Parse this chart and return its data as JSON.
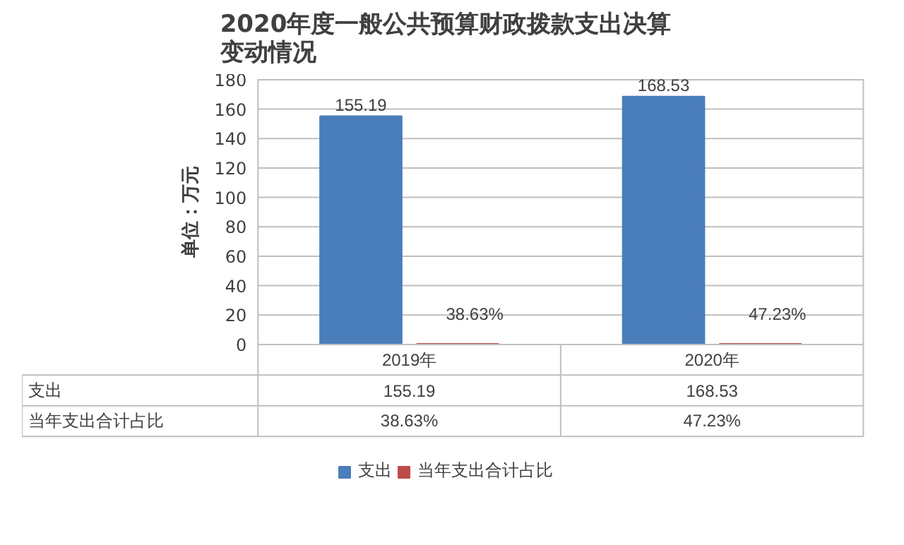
{
  "chart_data": {
    "type": "bar",
    "title": "2020年度一般公共预算财政拨款支出决算变动情况",
    "ylabel": "单位：万元",
    "categories": [
      "2019年",
      "2020年"
    ],
    "series": [
      {
        "name": "支出",
        "color": "#4a7ebb",
        "values": [
          155.19,
          168.53
        ],
        "value_labels": [
          "155.19",
          "168.53"
        ]
      },
      {
        "name": "当年支出合计占比",
        "color": "#be4b48",
        "values": [
          0.3863,
          0.4723
        ],
        "value_labels": [
          "38.63%",
          "47.23%"
        ]
      }
    ],
    "ylim": [
      0,
      180
    ],
    "yticks": [
      0,
      20,
      40,
      60,
      80,
      100,
      120,
      140,
      160,
      180
    ],
    "grid": "y",
    "legend": "bottom"
  }
}
